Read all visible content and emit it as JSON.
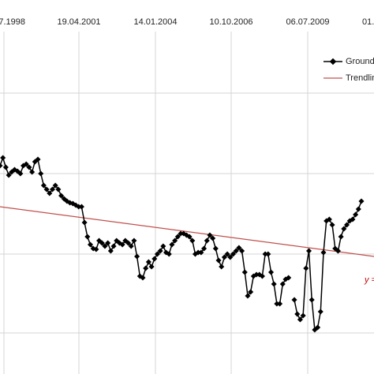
{
  "chart_data": {
    "type": "line",
    "x_labels": [
      "7.1998",
      "19.04.2001",
      "14.01.2004",
      "10.10.2006",
      "06.07.2009",
      "01."
    ],
    "series": [
      {
        "name": "Groundl",
        "color": "#000000",
        "values": [
          2.12,
          2.22,
          2.1,
          2.0,
          2.04,
          2.07,
          2.05,
          2.02,
          2.12,
          2.14,
          2.1,
          2.04,
          2.17,
          2.2,
          2.02,
          1.87,
          1.82,
          1.77,
          1.82,
          1.87,
          1.82,
          1.74,
          1.7,
          1.67,
          1.65,
          1.64,
          1.62,
          1.6,
          1.6,
          1.4,
          1.22,
          1.12,
          1.07,
          1.06,
          1.17,
          1.14,
          1.1,
          1.14,
          1.04,
          1.1,
          1.17,
          1.14,
          1.12,
          1.17,
          1.14,
          1.1,
          1.17,
          0.97,
          0.72,
          0.7,
          0.82,
          0.9,
          0.84,
          0.94,
          1.0,
          1.04,
          1.1,
          1.02,
          1.0,
          1.12,
          1.17,
          1.22,
          1.26,
          1.26,
          1.24,
          1.22,
          1.17,
          1.0,
          1.02,
          1.02,
          1.07,
          1.17,
          1.24,
          1.2,
          1.07,
          0.92,
          0.84,
          0.96,
          1.0,
          0.96,
          1.0,
          1.04,
          1.08,
          1.04,
          0.77,
          0.47,
          0.52,
          0.72,
          0.74,
          0.74,
          0.72,
          1.0,
          1.0,
          0.77,
          0.62,
          0.37,
          0.37,
          0.62,
          0.68,
          0.7,
          null,
          0.42,
          0.24,
          0.17,
          0.22,
          0.82,
          1.04,
          0.42,
          0.04,
          0.07,
          0.27,
          1.02,
          1.42,
          1.44,
          1.37,
          1.07,
          1.04,
          1.22,
          1.32,
          1.37,
          1.42,
          1.44,
          1.5,
          1.57,
          1.67
        ]
      },
      {
        "name": "Trendlin",
        "color": "#c0504d",
        "values": [
          1.6,
          0.97
        ]
      }
    ],
    "annotation": "y ="
  }
}
